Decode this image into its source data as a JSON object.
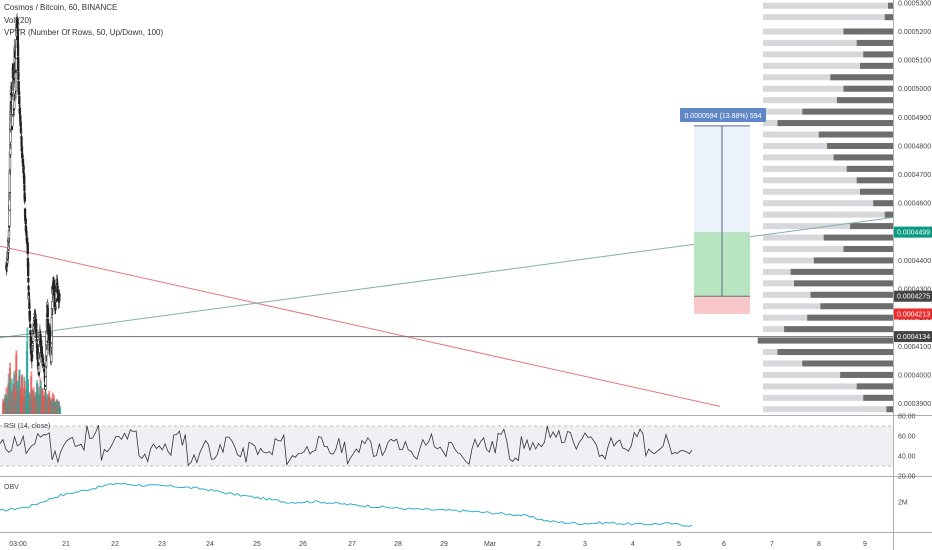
{
  "header": {
    "symbol_line": "Cosmos / Bitcoin, 60, BINANCE",
    "vol_line": "Vol (20)",
    "vpvr_line": "VPVR (Number Of Rows, 50, Up/Down, 100)"
  },
  "rsi_panel": {
    "label": "RSI (14, close)",
    "ticks": [
      "80.00",
      "60.00",
      "40.00",
      "20.00"
    ]
  },
  "obv_panel": {
    "label": "OBV",
    "tick": "2M"
  },
  "measure_label": "0.0000594 (13.88%) 594",
  "price_badges": [
    {
      "value": "0.0004499",
      "color": "#089981"
    },
    {
      "value": "0.0004275",
      "color": "#444444"
    },
    {
      "value": "0.0004213",
      "color": "#ef2c2c"
    },
    {
      "value": "0.0004134",
      "color": "#444444"
    }
  ],
  "colors": {
    "up": "#26a69a",
    "down": "#ef5350",
    "candle": "#222222",
    "vpvr": "#6d6d6d",
    "vpvr_light": "#d6d8dc",
    "trend_red": "#e0787d",
    "trend_green": "#7fb2a9"
  },
  "chart_data": {
    "type": "candlestick",
    "x_ticks": [
      "03:00",
      "21",
      "22",
      "23",
      "24",
      "25",
      "26",
      "27",
      "28",
      "29",
      "Mar",
      "2",
      "3",
      "4",
      "5",
      "6",
      "7",
      "8",
      "9"
    ],
    "price_ticks": [
      "0.0005300",
      "0.0005200",
      "0.0005100",
      "0.0005000",
      "0.0004900",
      "0.0004800",
      "0.0004700",
      "0.0004600",
      "0.0004500",
      "0.0004400",
      "0.0004300",
      "0.0004200",
      "0.0004100",
      "0.0004000",
      "0.0003900"
    ],
    "ylim": [
      0.000386,
      0.000531
    ],
    "price_path": [
      [
        0,
        0.000437
      ],
      [
        0.04,
        0.000442
      ],
      [
        0.07,
        0.000452
      ],
      [
        0.09,
        0.00048
      ],
      [
        0.11,
        0.0005
      ],
      [
        0.13,
        0.000485
      ],
      [
        0.15,
        0.00051
      ],
      [
        0.17,
        0.000492
      ],
      [
        0.19,
        0.000515
      ],
      [
        0.21,
        0.0005
      ],
      [
        0.23,
        0.000525
      ],
      [
        0.25,
        0.00052
      ],
      [
        0.27,
        0.0005
      ],
      [
        0.3,
        0.00049
      ],
      [
        0.32,
        0.000485
      ],
      [
        0.34,
        0.000478
      ],
      [
        0.36,
        0.000475
      ],
      [
        0.39,
        0.000468
      ],
      [
        0.41,
        0.000455
      ],
      [
        0.43,
        0.00045
      ],
      [
        0.46,
        0.000445
      ],
      [
        0.48,
        0.00043
      ],
      [
        0.51,
        0.00042
      ],
      [
        0.53,
        0.00041
      ],
      [
        0.55,
        0.000405
      ],
      [
        0.58,
        0.000415
      ],
      [
        0.6,
        0.00042
      ],
      [
        0.63,
        0.00042
      ],
      [
        0.66,
        0.00041
      ],
      [
        0.7,
        0.0004
      ],
      [
        0.72,
        0.000415
      ],
      [
        0.75,
        0.00041
      ],
      [
        0.78,
        0.000405
      ],
      [
        0.81,
        0.000403
      ],
      [
        0.84,
        0.000395
      ],
      [
        0.86,
        0.00041
      ],
      [
        0.88,
        0.000425
      ],
      [
        0.91,
        0.00041
      ],
      [
        0.93,
        0.000415
      ],
      [
        0.96,
        0.000405
      ],
      [
        0.99,
        0.00043
      ],
      [
        1.02,
        0.000432
      ],
      [
        1.05,
        0.000423
      ],
      [
        1.08,
        0.000433
      ],
      [
        1.11,
        0.000427
      ],
      [
        1.14,
        0.000427
      ]
    ],
    "vpvr_rows": [
      [
        0.000529,
        0.03
      ],
      [
        0.000525,
        0.05
      ],
      [
        0.00052,
        0.3
      ],
      [
        0.000516,
        0.22
      ],
      [
        0.000512,
        0.18
      ],
      [
        0.000508,
        0.2
      ],
      [
        0.000504,
        0.38
      ],
      [
        0.0005,
        0.3
      ],
      [
        0.000496,
        0.34
      ],
      [
        0.000492,
        0.55
      ],
      [
        0.000488,
        0.7
      ],
      [
        0.000484,
        0.45
      ],
      [
        0.00048,
        0.4
      ],
      [
        0.000476,
        0.36
      ],
      [
        0.000472,
        0.28
      ],
      [
        0.000468,
        0.22
      ],
      [
        0.000464,
        0.2
      ],
      [
        0.00046,
        0.12
      ],
      [
        0.000456,
        0.05
      ],
      [
        0.000452,
        0.26
      ],
      [
        0.000448,
        0.42
      ],
      [
        0.000444,
        0.3
      ],
      [
        0.00044,
        0.48
      ],
      [
        0.000436,
        0.62
      ],
      [
        0.000432,
        0.6
      ],
      [
        0.000428,
        0.5
      ],
      [
        0.000424,
        0.44
      ],
      [
        0.00042,
        0.52
      ],
      [
        0.000416,
        0.66
      ],
      [
        0.000412,
        0.82
      ],
      [
        0.000408,
        0.7
      ],
      [
        0.000404,
        0.55
      ],
      [
        0.0004,
        0.32
      ],
      [
        0.000396,
        0.22
      ],
      [
        0.000392,
        0.18
      ],
      [
        0.000388,
        0.04
      ]
    ],
    "volume": [
      0.15,
      0.1,
      0.2,
      0.12,
      0.28,
      0.18,
      0.4,
      0.16,
      0.55,
      0.2,
      0.35,
      0.12,
      0.3,
      0.45,
      0.18,
      0.7,
      0.22,
      0.34,
      0.15,
      0.48,
      0.26,
      0.18,
      0.6,
      0.3,
      0.22,
      0.4,
      0.16,
      0.28,
      0.9,
      0.35,
      0.2,
      0.24,
      0.18,
      0.5,
      0.28,
      0.22,
      0.3,
      0.15,
      0.26,
      0.2,
      0.42,
      0.18,
      0.3,
      0.22,
      0.35,
      0.16,
      0.28,
      0.2,
      0.18,
      0.24,
      0.3,
      0.15,
      0.22,
      0.18,
      0.26,
      0.2,
      0.15,
      0.18,
      0.22,
      0.14,
      0.2,
      0.16,
      0.12,
      0.18,
      0.1,
      0.15,
      0.12,
      0.08
    ],
    "rsi": [
      50,
      55,
      45,
      62,
      40,
      58,
      48,
      65,
      42,
      55,
      60,
      38,
      52,
      46,
      58,
      36,
      50,
      44,
      56,
      40,
      48,
      42,
      54,
      38,
      46,
      52,
      44,
      50,
      40,
      58,
      46,
      52,
      48,
      42,
      56,
      44,
      50,
      38,
      54,
      48,
      60,
      42,
      52,
      46,
      66,
      58,
      50,
      62,
      44,
      56,
      48,
      60,
      42,
      54,
      50,
      46
    ],
    "rsi_ylim": [
      20,
      80
    ],
    "obv": [
      0.2,
      0.3,
      0.55,
      0.7,
      0.85,
      0.8,
      0.78,
      0.72,
      0.6,
      0.5,
      0.4,
      0.42,
      0.35,
      0.3,
      0.25,
      0.22,
      0.2,
      0.15,
      0.1,
      -0.05,
      -0.1,
      -0.08,
      -0.12,
      -0.1,
      -0.15
    ],
    "obv_ylim": [
      -0.3,
      1.0
    ]
  }
}
